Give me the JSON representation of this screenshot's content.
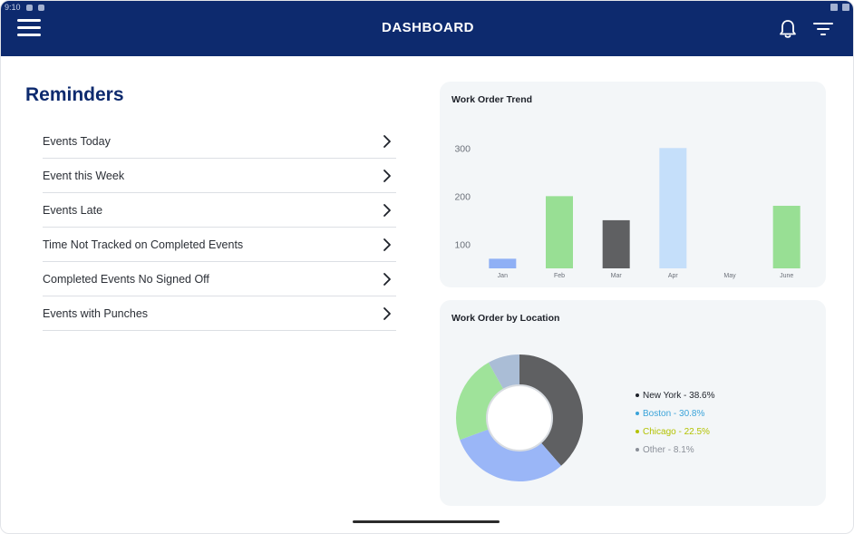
{
  "app": {
    "title": "DASHBOARD"
  },
  "status_bar": {
    "time": "9:10"
  },
  "icons": {
    "menu": "hamburger-icon",
    "notifications": "bell-icon",
    "filter": "filter-icon",
    "chevron": "chevron-right-icon"
  },
  "colors": {
    "brand": "#0d2a6e",
    "card_bg": "#f3f6f8"
  },
  "reminders": {
    "title": "Reminders",
    "items": [
      {
        "label": "Events Today"
      },
      {
        "label": "Event this Week"
      },
      {
        "label": "Events Late"
      },
      {
        "label": "Time Not Tracked on Completed Events"
      },
      {
        "label": "Completed Events No Signed Off"
      },
      {
        "label": "Events with Punches"
      }
    ]
  },
  "trend_card": {
    "title": "Work Order Trend"
  },
  "location_card": {
    "title": "Work Order by Location"
  },
  "chart_data": [
    {
      "type": "bar",
      "title": "Work Order Trend",
      "categories": [
        "Jan",
        "Feb",
        "Mar",
        "Apr",
        "May",
        "June"
      ],
      "values": [
        70,
        200,
        150,
        300,
        45,
        180
      ],
      "colors": [
        "#8fb0f5",
        "#98df94",
        "#5f6062",
        "#c5dffa",
        "#aabdd6",
        "#98df94"
      ],
      "ylim": [
        50,
        325
      ],
      "yticks": [
        100,
        200,
        300
      ],
      "grid": false,
      "xlabel": "",
      "ylabel": ""
    },
    {
      "type": "pie",
      "title": "Work Order by Location",
      "donut": true,
      "legend_position": "right",
      "slices": [
        {
          "label": "New York - 38.6%",
          "value": 38.6,
          "color": "#5f6062",
          "legend_color": "#1d2129"
        },
        {
          "label": "Boston - 30.8%",
          "value": 30.8,
          "color": "#9ab6f7",
          "legend_color": "#3aa3d9"
        },
        {
          "label": "Chicago - 22.5%",
          "value": 22.5,
          "color": "#9fe39a",
          "legend_color": "#b3c200"
        },
        {
          "label": "Other - 8.1%",
          "value": 8.1,
          "color": "#aabdd6",
          "legend_color": "#8a8f98"
        }
      ]
    }
  ]
}
